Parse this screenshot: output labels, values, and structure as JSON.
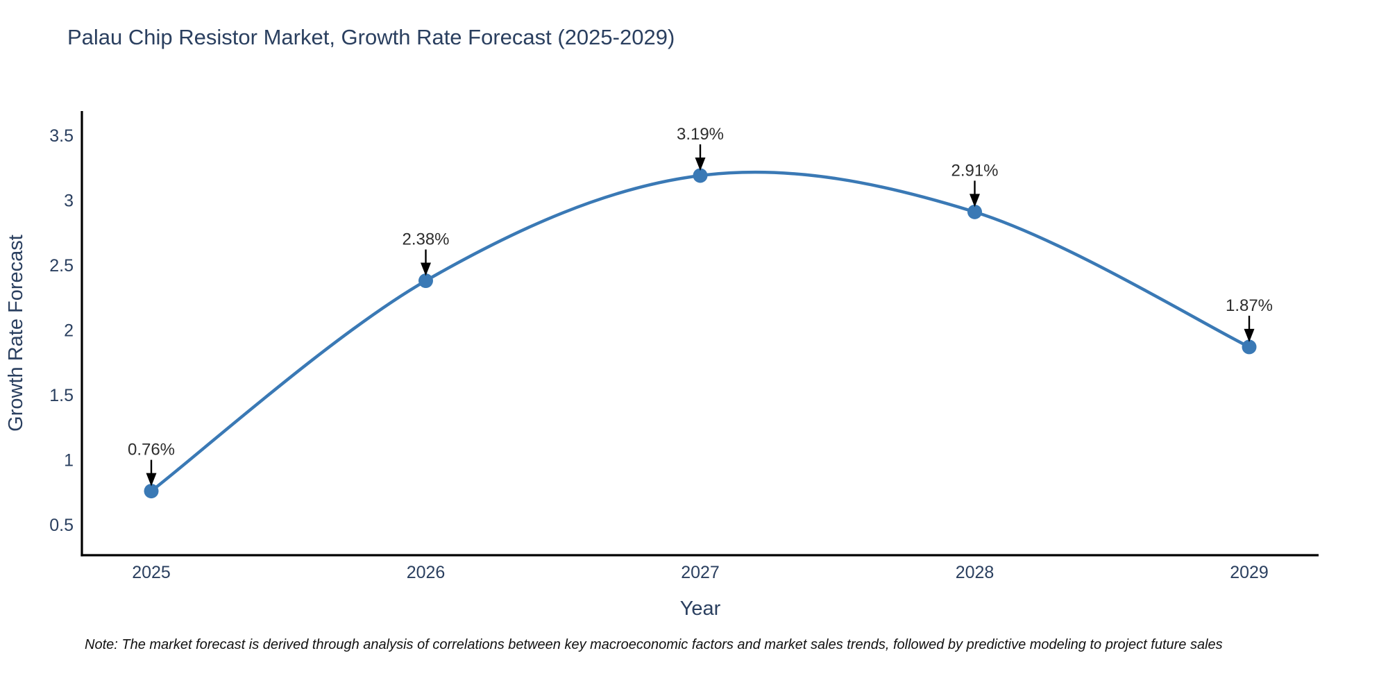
{
  "header": {
    "title": "Palau Chip Resistor Market, Growth Rate Forecast (2025-2029)"
  },
  "footnote": {
    "text": "Note: The market forecast is derived through analysis of correlations between key macroeconomic factors and market sales trends, followed by predictive modeling to project future sales"
  },
  "chart_data": {
    "type": "line",
    "title": "Palau Chip Resistor Market, Growth Rate Forecast (2025-2029)",
    "categories": [
      "2025",
      "2026",
      "2027",
      "2028",
      "2029"
    ],
    "series": [
      {
        "name": "Growth Rate Forecast",
        "values": [
          0.76,
          2.38,
          3.19,
          2.91,
          1.87
        ]
      }
    ],
    "point_labels": [
      "0.76%",
      "2.38%",
      "3.19%",
      "2.91%",
      "1.87%"
    ],
    "xlabel": "Year",
    "ylabel": "Growth Rate Forecast",
    "yticks": [
      0.5,
      1,
      1.5,
      2,
      2.5,
      3,
      3.5
    ],
    "ylim": [
      0.266,
      3.687
    ],
    "line_shape": "spline",
    "grid": false,
    "legend_position": "none",
    "annotation_arrows": true,
    "colors": {
      "line": "#3a79b5",
      "marker": "#3a79b5",
      "axis": "#000000",
      "title_text": "#2a3f5f",
      "tick_text": "#2a3f5f",
      "axis_label_text": "#2a3f5f",
      "annotation_text": "#2d2d2d",
      "arrow": "#000000",
      "note_text": "#111111",
      "background": "#ffffff"
    }
  }
}
